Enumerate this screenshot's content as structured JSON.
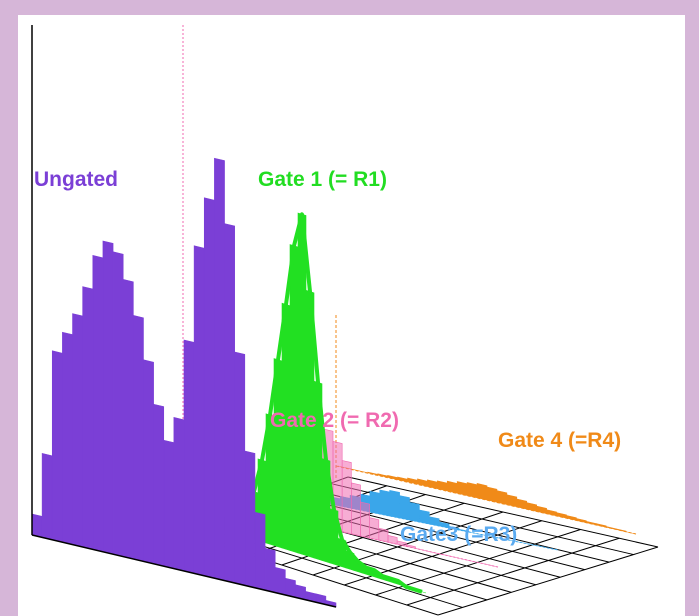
{
  "chart_data": {
    "type": "area",
    "labels": {
      "ungated": "Ungated",
      "gate1": "Gate 1 (= R1)",
      "gate2": "Gate 2 (= R2)",
      "gate3": "Gate3 (=R3)",
      "gate4": "Gate 4 (=R4)"
    },
    "colors": {
      "ungated": "#7b3fd6",
      "gate1": "#22e022",
      "gate2": "#f06ab0",
      "gate3": "#3aa6ea",
      "gate4": "#f08a18",
      "grid": "#000000"
    },
    "series": [
      {
        "name": "Ungated",
        "values": [
          0.05,
          0.2,
          0.45,
          0.5,
          0.55,
          0.62,
          0.7,
          0.74,
          0.72,
          0.66,
          0.58,
          0.48,
          0.38,
          0.3,
          0.36,
          0.55,
          0.78,
          0.9,
          1.0,
          0.85,
          0.55,
          0.32,
          0.18,
          0.1,
          0.06,
          0.04,
          0.03,
          0.02,
          0.02,
          0.01
        ]
      },
      {
        "name": "Gate 1 (= R1)",
        "values": [
          0.01,
          0.01,
          0.02,
          0.02,
          0.03,
          0.04,
          0.06,
          0.09,
          0.14,
          0.24,
          0.38,
          0.55,
          0.72,
          0.9,
          1.0,
          0.78,
          0.52,
          0.3,
          0.16,
          0.08,
          0.05,
          0.03,
          0.02,
          0.02,
          0.01,
          0.01,
          0.01,
          0.0,
          0.0,
          0.0
        ]
      },
      {
        "name": "Gate 2 (= R2)",
        "values": [
          0.0,
          0.01,
          0.02,
          0.04,
          0.08,
          0.14,
          0.22,
          0.32,
          0.42,
          0.5,
          0.56,
          0.58,
          0.52,
          0.42,
          0.3,
          0.2,
          0.12,
          0.07,
          0.04,
          0.02,
          0.01,
          0.0,
          0.0,
          0.0,
          0.0,
          0.0,
          0.0,
          0.0,
          0.0,
          0.0
        ]
      },
      {
        "name": "Gate3 (=R3)",
        "values": [
          0.0,
          0.0,
          0.0,
          0.01,
          0.02,
          0.04,
          0.06,
          0.09,
          0.12,
          0.16,
          0.2,
          0.26,
          0.3,
          0.32,
          0.28,
          0.22,
          0.15,
          0.09,
          0.05,
          0.02,
          0.01,
          0.0,
          0.0,
          0.0,
          0.0,
          0.0,
          0.0,
          0.0,
          0.0,
          0.0
        ]
      },
      {
        "name": "Gate 4 (=R4)",
        "values": [
          0.0,
          0.0,
          0.0,
          0.01,
          0.02,
          0.03,
          0.04,
          0.06,
          0.08,
          0.1,
          0.12,
          0.15,
          0.18,
          0.2,
          0.22,
          0.2,
          0.18,
          0.15,
          0.12,
          0.1,
          0.08,
          0.06,
          0.05,
          0.04,
          0.03,
          0.02,
          0.02,
          0.01,
          0.01,
          0.0
        ]
      }
    ],
    "grid": true
  }
}
